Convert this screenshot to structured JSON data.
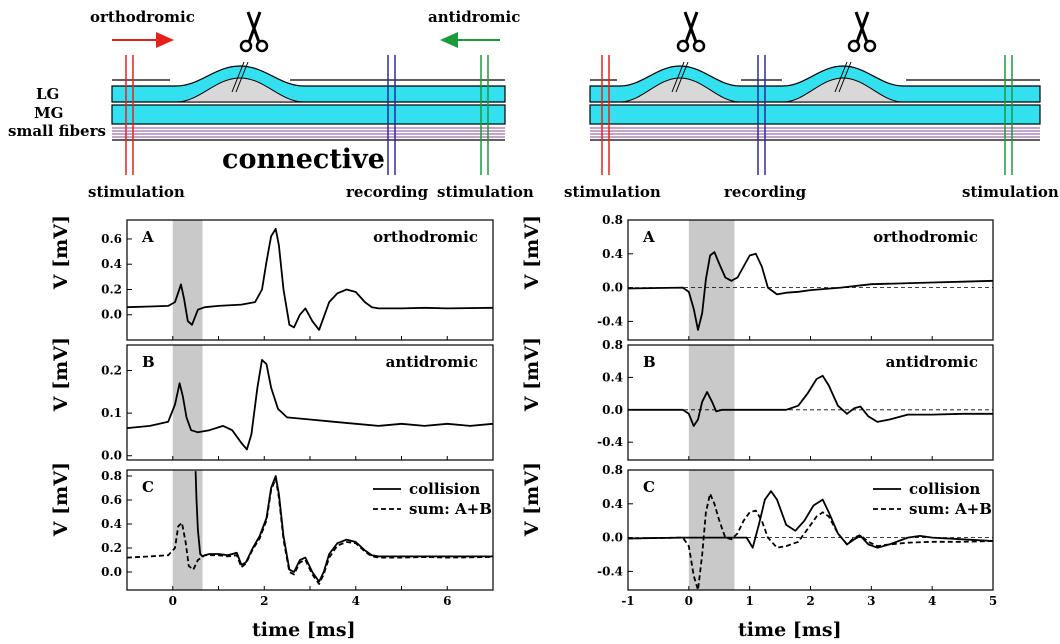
{
  "schematic": {
    "left": {
      "orthodromic": "orthodromic",
      "antidromic": "antidromic",
      "lg": "LG",
      "mg": "MG",
      "small_fibers": "small fibers",
      "connective": "connective",
      "stim1": "stimulation",
      "recording": "recording",
      "stim2": "stimulation",
      "scissors_icon": "scissors-icon",
      "colors": {
        "ortho_arrow": "#e8201a",
        "anti_arrow": "#1a9a3a",
        "fiber": "#33e0f0",
        "ganglion": "#d8d8d8",
        "recording": "#2a2aa0",
        "small_fiber": "#8a4a9a"
      }
    },
    "right": {
      "stim1": "stimulation",
      "recording": "recording",
      "stim2": "stimulation",
      "scissors_icon": "scissors-icon"
    }
  },
  "chart_data": [
    {
      "type": "line",
      "panel": "left-A",
      "letter": "A",
      "label": "orthodromic",
      "ylabel": "V [mV]",
      "ylim": [
        -0.2,
        0.75
      ],
      "yticks": [
        "0.0",
        "0.2",
        "0.4",
        "0.6"
      ],
      "xlim": [
        -1,
        7
      ],
      "shade": [
        0,
        0.65
      ],
      "series": [
        {
          "style": "solid",
          "x": [
            -1,
            -0.5,
            -0.1,
            0.05,
            0.18,
            0.25,
            0.33,
            0.42,
            0.55,
            0.7,
            1,
            1.5,
            1.8,
            1.95,
            2.05,
            2.15,
            2.25,
            2.32,
            2.42,
            2.55,
            2.65,
            2.78,
            2.9,
            3.05,
            3.2,
            3.3,
            3.42,
            3.6,
            3.8,
            4,
            4.2,
            4.35,
            4.5,
            5,
            5.5,
            6,
            7
          ],
          "y": [
            0.06,
            0.065,
            0.07,
            0.1,
            0.24,
            0.12,
            -0.05,
            -0.08,
            0.04,
            0.06,
            0.07,
            0.08,
            0.1,
            0.2,
            0.42,
            0.62,
            0.68,
            0.55,
            0.2,
            -0.08,
            -0.1,
            0.0,
            0.05,
            -0.05,
            -0.12,
            -0.02,
            0.1,
            0.17,
            0.2,
            0.18,
            0.1,
            0.06,
            0.05,
            0.05,
            0.055,
            0.05,
            0.055
          ]
        }
      ]
    },
    {
      "type": "line",
      "panel": "left-B",
      "letter": "B",
      "label": "antidromic",
      "ylabel": "V [mV]",
      "ylim": [
        -0.01,
        0.26
      ],
      "yticks": [
        "0.0",
        "0.1",
        "0.2"
      ],
      "xlim": [
        -1,
        7
      ],
      "shade": [
        0,
        0.65
      ],
      "series": [
        {
          "style": "solid",
          "x": [
            -1,
            -0.5,
            -0.1,
            0.05,
            0.15,
            0.22,
            0.3,
            0.4,
            0.55,
            0.8,
            1.1,
            1.3,
            1.5,
            1.62,
            1.72,
            1.85,
            1.95,
            2.05,
            2.15,
            2.3,
            2.5,
            3,
            3.5,
            4,
            4.5,
            5,
            5.5,
            6,
            6.5,
            7
          ],
          "y": [
            0.065,
            0.07,
            0.08,
            0.12,
            0.17,
            0.14,
            0.09,
            0.06,
            0.055,
            0.06,
            0.07,
            0.06,
            0.03,
            0.015,
            0.05,
            0.16,
            0.225,
            0.215,
            0.16,
            0.11,
            0.09,
            0.085,
            0.08,
            0.075,
            0.07,
            0.075,
            0.07,
            0.075,
            0.07,
            0.075
          ]
        }
      ]
    },
    {
      "type": "line",
      "panel": "left-C",
      "letter": "C",
      "ylabel": "V [mV]",
      "ylim": [
        -0.15,
        0.85
      ],
      "yticks": [
        "0.0",
        "0.2",
        "0.4",
        "0.6",
        "0.8"
      ],
      "xlim": [
        -1,
        7
      ],
      "xticks": [
        "0",
        "2",
        "4",
        "6"
      ],
      "shade": [
        0,
        0.65
      ],
      "legend": [
        "collision",
        "sum: A+B"
      ],
      "series": [
        {
          "name": "collision",
          "style": "solid",
          "x": [
            0.5,
            0.52,
            0.55,
            0.6,
            0.65,
            0.7,
            0.8,
            1,
            1.2,
            1.4,
            1.5,
            1.6,
            1.75,
            1.9,
            2.05,
            2.15,
            2.25,
            2.32,
            2.42,
            2.55,
            2.65,
            2.78,
            2.9,
            3.05,
            3.2,
            3.3,
            3.42,
            3.6,
            3.8,
            4,
            4.2,
            4.35,
            4.5,
            5,
            5.5,
            6,
            7
          ],
          "y": [
            0.84,
            0.6,
            0.35,
            0.15,
            0.13,
            0.14,
            0.15,
            0.15,
            0.14,
            0.16,
            0.06,
            0.08,
            0.2,
            0.3,
            0.45,
            0.7,
            0.8,
            0.65,
            0.3,
            0.02,
            0.0,
            0.1,
            0.12,
            0.0,
            -0.08,
            0.0,
            0.15,
            0.24,
            0.27,
            0.25,
            0.18,
            0.14,
            0.13,
            0.13,
            0.13,
            0.13,
            0.13
          ]
        },
        {
          "name": "sum: A+B",
          "style": "dashed",
          "x": [
            -1,
            -0.5,
            -0.1,
            0.05,
            0.12,
            0.2,
            0.28,
            0.35,
            0.45,
            0.55,
            0.7,
            1,
            1.2,
            1.4,
            1.5,
            1.6,
            1.75,
            1.9,
            2.05,
            2.15,
            2.25,
            2.32,
            2.42,
            2.55,
            2.65,
            2.78,
            2.9,
            3.05,
            3.2,
            3.3,
            3.42,
            3.6,
            3.8,
            4,
            4.2,
            4.35,
            4.5,
            5,
            5.5,
            6,
            7
          ],
          "y": [
            0.12,
            0.13,
            0.14,
            0.2,
            0.38,
            0.41,
            0.25,
            0.05,
            0.02,
            0.1,
            0.14,
            0.14,
            0.13,
            0.14,
            0.04,
            0.07,
            0.19,
            0.28,
            0.43,
            0.68,
            0.78,
            0.62,
            0.27,
            0.0,
            -0.02,
            0.08,
            0.1,
            -0.02,
            -0.1,
            -0.02,
            0.12,
            0.22,
            0.25,
            0.24,
            0.17,
            0.13,
            0.12,
            0.12,
            0.125,
            0.12,
            0.125
          ]
        }
      ]
    },
    {
      "type": "line",
      "panel": "right-A",
      "letter": "A",
      "label": "orthodromic",
      "ylabel": "V [mV]",
      "ylim": [
        -0.62,
        0.8
      ],
      "yticks": [
        "-0.4",
        "0.0",
        "0.4",
        "0.8"
      ],
      "xlim": [
        -1,
        5
      ],
      "shade": [
        0,
        0.75
      ],
      "baseline": 0,
      "series": [
        {
          "style": "solid",
          "x": [
            -1,
            -0.5,
            -0.1,
            0.0,
            0.08,
            0.15,
            0.22,
            0.28,
            0.35,
            0.42,
            0.5,
            0.6,
            0.7,
            0.8,
            0.9,
            1,
            1.1,
            1.2,
            1.3,
            1.45,
            1.6,
            1.8,
            2,
            2.5,
            3,
            3.5,
            4,
            4.5,
            5
          ],
          "y": [
            -0.01,
            -0.005,
            0.0,
            -0.05,
            -0.25,
            -0.5,
            -0.3,
            0.1,
            0.38,
            0.42,
            0.28,
            0.12,
            0.08,
            0.12,
            0.25,
            0.38,
            0.4,
            0.25,
            0.0,
            -0.08,
            -0.06,
            -0.05,
            -0.03,
            0.0,
            0.04,
            0.05,
            0.06,
            0.07,
            0.08
          ]
        }
      ]
    },
    {
      "type": "line",
      "panel": "right-B",
      "letter": "B",
      "label": "antidromic",
      "ylabel": "V [mV]",
      "ylim": [
        -0.62,
        0.8
      ],
      "yticks": [
        "-0.4",
        "0.0",
        "0.4",
        "0.8"
      ],
      "xlim": [
        -1,
        5
      ],
      "shade": [
        0,
        0.75
      ],
      "baseline": 0,
      "series": [
        {
          "style": "solid",
          "x": [
            -1,
            -0.5,
            -0.1,
            0.0,
            0.08,
            0.15,
            0.22,
            0.3,
            0.38,
            0.45,
            0.55,
            0.8,
            1.2,
            1.6,
            1.8,
            1.95,
            2.1,
            2.2,
            2.3,
            2.45,
            2.6,
            2.72,
            2.82,
            2.95,
            3.1,
            3.3,
            3.6,
            4,
            4.5,
            5
          ],
          "y": [
            0.0,
            0.0,
            0.0,
            -0.05,
            -0.2,
            -0.12,
            0.1,
            0.22,
            0.1,
            -0.02,
            0.0,
            0.0,
            0.0,
            0.0,
            0.05,
            0.2,
            0.38,
            0.42,
            0.3,
            0.05,
            -0.05,
            0.02,
            0.04,
            -0.08,
            -0.15,
            -0.12,
            -0.06,
            -0.06,
            -0.05,
            -0.05
          ]
        }
      ]
    },
    {
      "type": "line",
      "panel": "right-C",
      "letter": "C",
      "ylabel": "V [mV]",
      "ylim": [
        -0.62,
        0.8
      ],
      "yticks": [
        "-0.4",
        "0.0",
        "0.4",
        "0.8"
      ],
      "xlim": [
        -1,
        5
      ],
      "xticks": [
        "-1",
        "0",
        "1",
        "2",
        "3",
        "4",
        "5"
      ],
      "shade": [
        0,
        0.75
      ],
      "baseline": 0,
      "legend": [
        "collision",
        "sum: A+B"
      ],
      "series": [
        {
          "name": "collision",
          "style": "solid",
          "x": [
            -1,
            -0.5,
            -0.1,
            0.0,
            0.5,
            0.8,
            0.95,
            1.05,
            1.15,
            1.25,
            1.35,
            1.45,
            1.6,
            1.75,
            1.9,
            2.05,
            2.2,
            2.3,
            2.45,
            2.6,
            2.72,
            2.82,
            2.95,
            3.1,
            3.3,
            3.6,
            3.8,
            4,
            4.5,
            5
          ],
          "y": [
            -0.01,
            -0.005,
            0.0,
            0.0,
            0.0,
            0.0,
            0.0,
            -0.12,
            0.15,
            0.45,
            0.55,
            0.45,
            0.15,
            0.08,
            0.2,
            0.38,
            0.45,
            0.3,
            0.05,
            -0.08,
            -0.02,
            0.02,
            -0.08,
            -0.12,
            -0.08,
            0.0,
            0.02,
            0.0,
            -0.02,
            -0.04
          ]
        },
        {
          "name": "sum: A+B",
          "style": "dashed",
          "x": [
            -1,
            -0.5,
            -0.1,
            0.0,
            0.08,
            0.15,
            0.22,
            0.28,
            0.35,
            0.42,
            0.5,
            0.6,
            0.7,
            0.8,
            0.9,
            1,
            1.1,
            1.2,
            1.3,
            1.45,
            1.6,
            1.8,
            1.95,
            2.1,
            2.2,
            2.3,
            2.45,
            2.6,
            2.72,
            2.82,
            2.95,
            3.1,
            3.3,
            3.6,
            4,
            4.5,
            5
          ],
          "y": [
            -0.01,
            -0.005,
            0.0,
            -0.1,
            -0.45,
            -0.62,
            -0.2,
            0.3,
            0.52,
            0.4,
            0.2,
            0.0,
            -0.02,
            0.05,
            0.2,
            0.3,
            0.32,
            0.2,
            0.0,
            -0.12,
            -0.1,
            -0.05,
            0.1,
            0.25,
            0.3,
            0.25,
            0.05,
            -0.08,
            0.0,
            0.03,
            -0.05,
            -0.1,
            -0.08,
            -0.06,
            -0.05,
            -0.05,
            -0.04
          ]
        }
      ]
    }
  ],
  "axes": {
    "xlabel": "time [ms]"
  }
}
